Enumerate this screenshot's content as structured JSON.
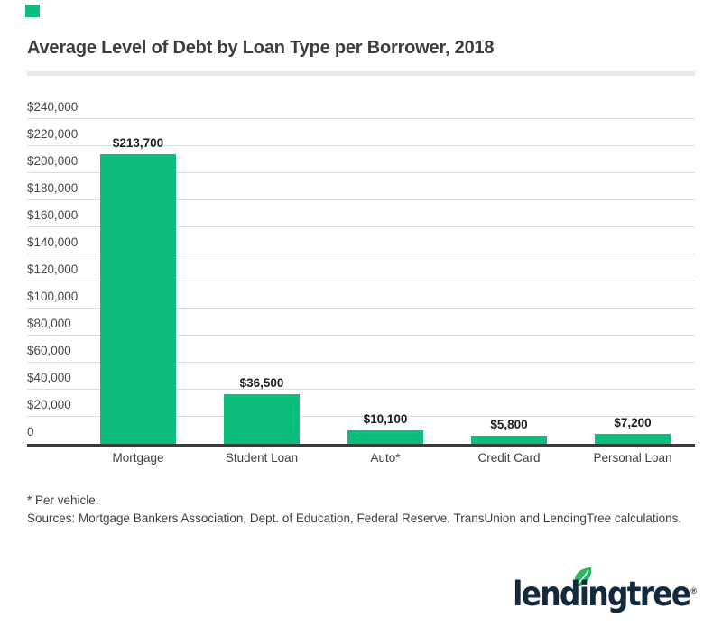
{
  "header": {
    "title": "Average Level of Debt by Loan Type per Borrower, 2018"
  },
  "chart_data": {
    "type": "bar",
    "title": "Average Level of Debt by Loan Type per Borrower, 2018",
    "categories": [
      "Mortgage",
      "Student Loan",
      "Auto*",
      "Credit Card",
      "Personal Loan"
    ],
    "values": [
      213700,
      36500,
      10100,
      5800,
      7200
    ],
    "value_labels": [
      "$213,700",
      "$36,500",
      "$10,100",
      "$5,800",
      "$7,200"
    ],
    "xlabel": "",
    "ylabel": "",
    "ylim": [
      0,
      240000
    ],
    "ytick_step": 20000,
    "yticks": [
      {
        "label": "$240,000",
        "value": 240000
      },
      {
        "label": "$220,000",
        "value": 220000
      },
      {
        "label": "$200,000",
        "value": 200000
      },
      {
        "label": "$180,000",
        "value": 180000
      },
      {
        "label": "$160,000",
        "value": 160000
      },
      {
        "label": "$140,000",
        "value": 140000
      },
      {
        "label": "$120,000",
        "value": 120000
      },
      {
        "label": "$100,000",
        "value": 100000
      },
      {
        "label": "$80,000",
        "value": 80000
      },
      {
        "label": "$60,000",
        "value": 60000
      },
      {
        "label": "$40,000",
        "value": 40000
      },
      {
        "label": "$20,000",
        "value": 20000
      },
      {
        "label": "0",
        "value": 0
      }
    ],
    "grid": "horizontal",
    "legend": "none",
    "bar_color": "#0dbd7c"
  },
  "footnotes": {
    "line1": "* Per vehicle.",
    "line2": "Sources: Mortgage Bankers Association, Dept. of Education, Federal Reserve, TransUnion and LendingTree calculations."
  },
  "logo": {
    "wordmark": "lendingtree",
    "registered_mark": "®"
  },
  "colors": {
    "accent_green": "#0dbd7c",
    "logo_navy": "#15293c",
    "leaf_green_light": "#45b649",
    "leaf_green_dark": "#00b97e",
    "gridline_gray": "#dcdcdc",
    "baseline_dark": "#3a3a3a"
  }
}
